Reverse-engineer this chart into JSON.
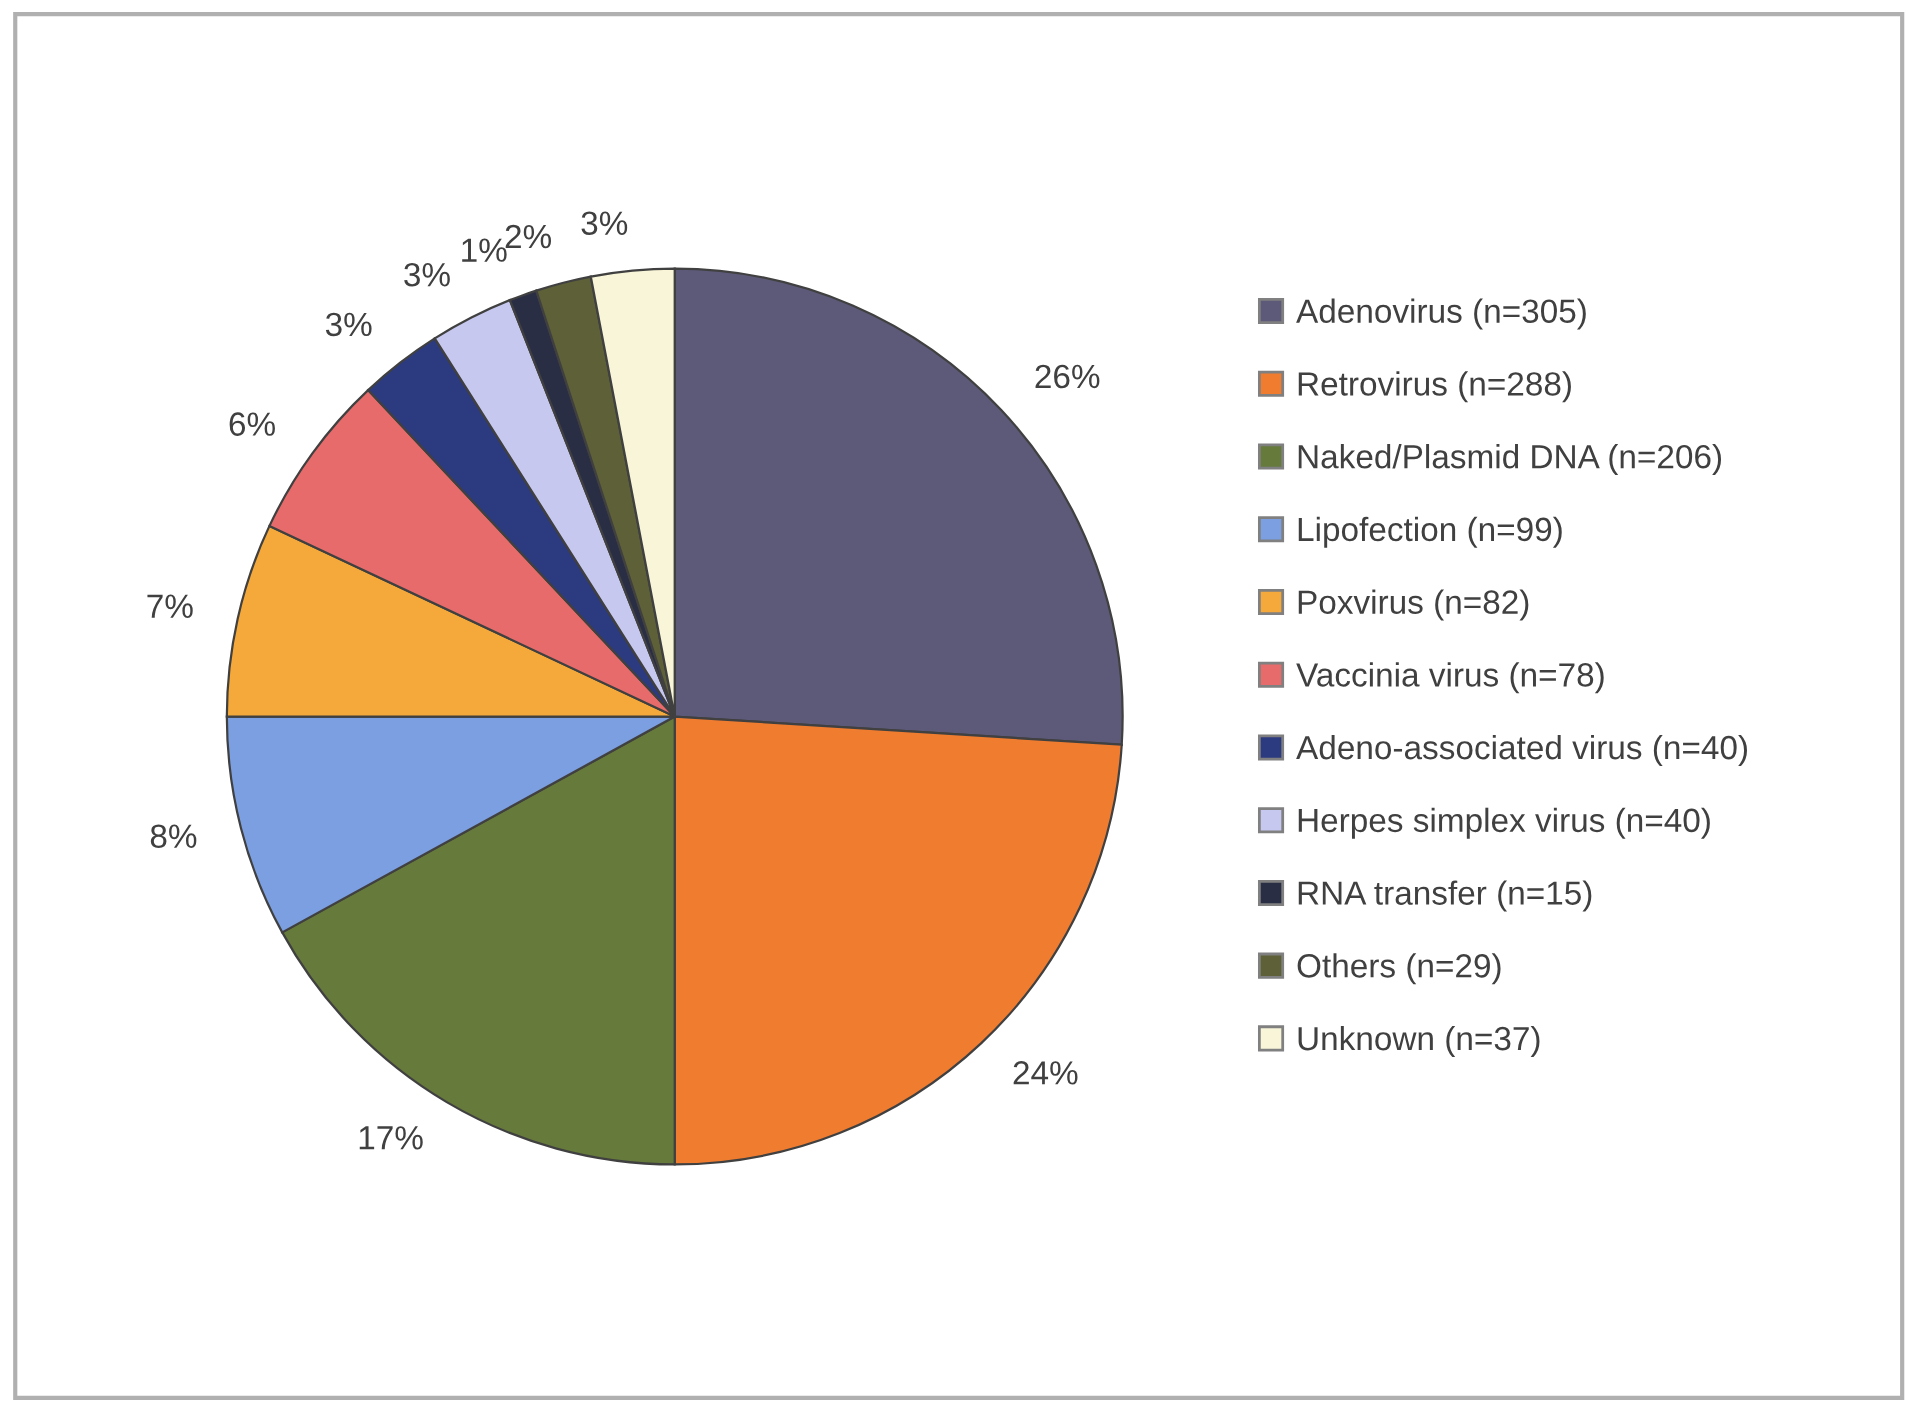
{
  "chart_data": {
    "type": "pie",
    "categories": [
      "Adenovirus (n=305)",
      "Retrovirus (n=288)",
      "Naked/Plasmid DNA (n=206)",
      "Lipofection (n=99)",
      "Poxvirus (n=82)",
      "Vaccinia virus (n=78)",
      "Adeno-associated virus (n=40)",
      "Herpes simplex virus (n=40)",
      "RNA transfer (n=15)",
      "Others (n=29)",
      "Unknown (n=37)"
    ],
    "values": [
      26,
      24,
      17,
      8,
      7,
      6,
      3,
      3,
      1,
      2,
      3
    ],
    "value_labels": [
      "26%",
      "24%",
      "17%",
      "8%",
      "7%",
      "6%",
      "3%",
      "3%",
      "1%",
      "2%",
      "3%"
    ],
    "colors": [
      "#5c5a78",
      "#f07c30",
      "#667a3c",
      "#7b9fe0",
      "#f5a93a",
      "#e86b6b",
      "#2c3a80",
      "#c6c8f0",
      "#2a2e45",
      "#5e6038",
      "#f8f5d8"
    ],
    "legend": "right"
  }
}
